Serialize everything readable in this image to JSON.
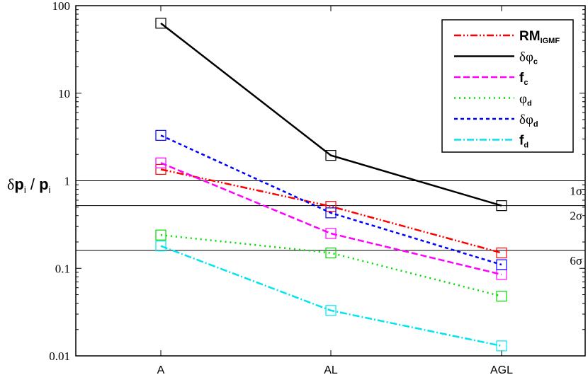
{
  "chart_data": {
    "type": "line",
    "categories": [
      "A",
      "AL",
      "AGL"
    ],
    "ylabel": "δp_i / p_i",
    "yscale": "log",
    "ylim": [
      0.01,
      100
    ],
    "yticks": [
      "0.01",
      "0.1",
      "1",
      "10",
      "100"
    ],
    "grid": false,
    "legend_position": "top-right",
    "marker": "open-square",
    "reference_lines": [
      {
        "value": 1.0,
        "label": "1σ"
      },
      {
        "value": 0.52,
        "label": "2σ"
      },
      {
        "value": 0.16,
        "label": "6σ"
      }
    ],
    "series": [
      {
        "name": "RM",
        "sub": "IGMF",
        "values": [
          1.35,
          0.51,
          0.15
        ],
        "color": "#ff0000",
        "dash": "10,3,2,3,2,3"
      },
      {
        "name": "δφ",
        "sub": "c",
        "values": [
          63,
          1.95,
          0.52
        ],
        "color": "#000000",
        "dash": ""
      },
      {
        "name": "f",
        "sub": "c",
        "values": [
          1.6,
          0.25,
          0.085
        ],
        "color": "#ff00ff",
        "dash": "9,4"
      },
      {
        "name": "φ",
        "sub": "d",
        "values": [
          0.24,
          0.15,
          0.048
        ],
        "color": "#00dd00",
        "dash": "2,5"
      },
      {
        "name": "δφ",
        "sub": "d",
        "values": [
          3.3,
          0.43,
          0.11
        ],
        "color": "#0000ff",
        "dash": "5,4"
      },
      {
        "name": "f",
        "sub": "d",
        "values": [
          0.18,
          0.033,
          0.013
        ],
        "color": "#00e5ee",
        "dash": "10,3,2,3"
      }
    ]
  }
}
